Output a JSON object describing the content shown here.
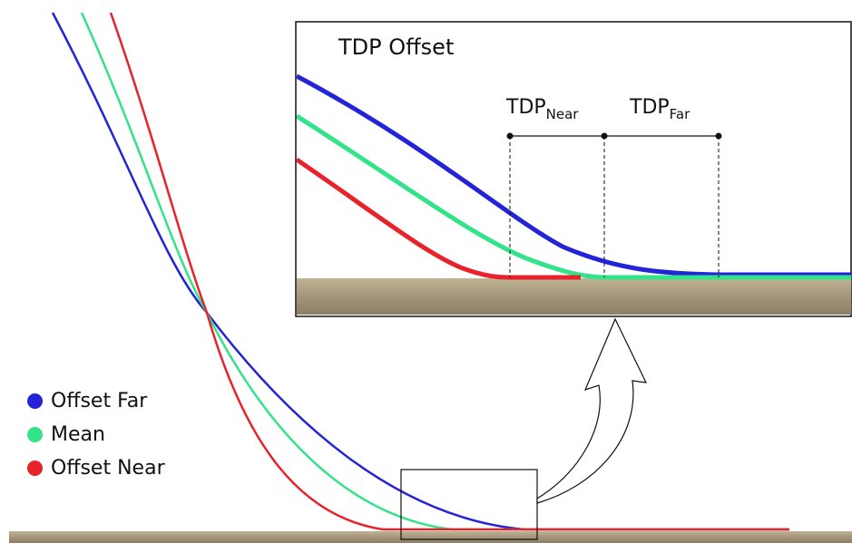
{
  "inset": {
    "title": "TDP Offset",
    "dim_near": {
      "main": "TDP",
      "sub": "Near"
    },
    "dim_far": {
      "main": "TDP",
      "sub": "Far"
    }
  },
  "legend": [
    {
      "label": "Offset Far",
      "color": "#2323d8"
    },
    {
      "label": "Mean",
      "color": "#33e38a"
    },
    {
      "label": "Offset Near",
      "color": "#e8222a"
    }
  ],
  "colors": {
    "offset_far": "#2323d8",
    "mean": "#33e38a",
    "offset_near": "#e8222a",
    "seabed": "#a89a7c",
    "frame": "#111111"
  }
}
